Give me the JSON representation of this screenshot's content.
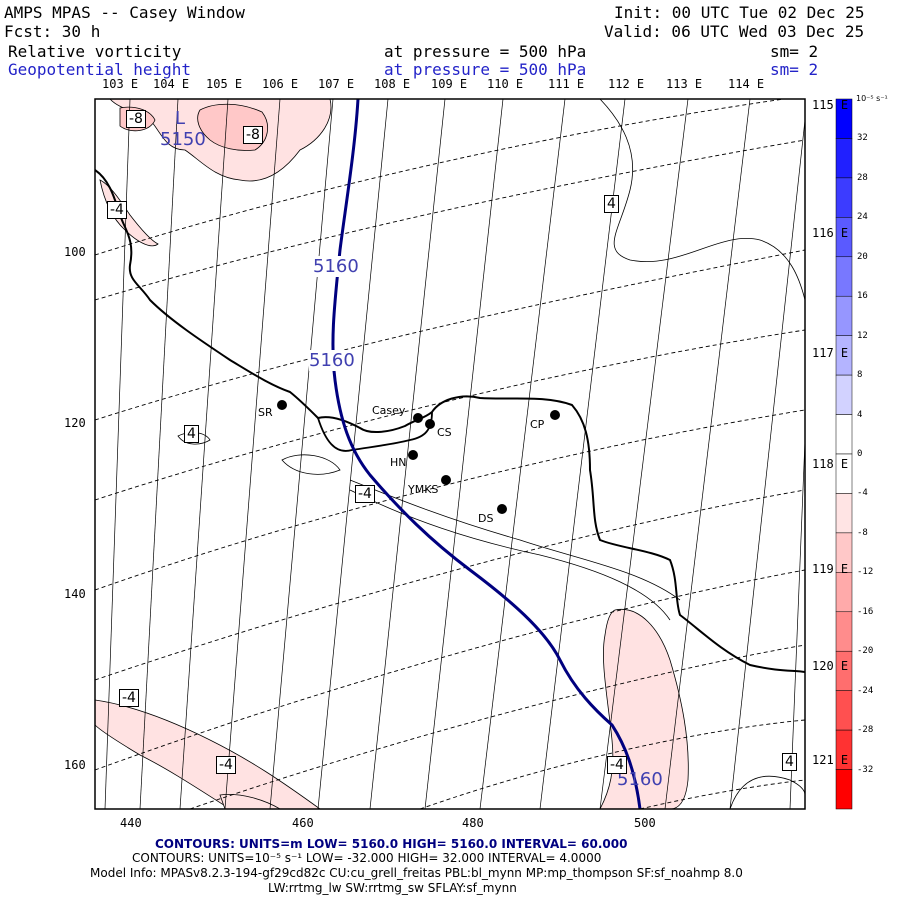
{
  "header": {
    "title": "AMPS MPAS -- Casey Window",
    "init": "Init: 00 UTC Tue 02 Dec 25",
    "fcst": "Fcst:   30 h",
    "valid": "Valid: 06 UTC Wed 03 Dec 25",
    "field1_name": "Relative vorticity",
    "field1_pressure": "at pressure =  500 hPa",
    "field1_sm": "sm= 2",
    "field2_name": "Geopotential height",
    "field2_pressure": "at pressure =  500 hPa",
    "field2_sm": "sm= 2"
  },
  "top_longitudes": [
    "103 E",
    "104 E",
    "105 E",
    "106 E",
    "107 E",
    "108 E",
    "109 E",
    "110 E",
    "111 E",
    "112 E",
    "113 E",
    "114 E"
  ],
  "right_labels": [
    "115 E",
    "116 E",
    "117 E",
    "118 E",
    "119 E",
    "120 E",
    "121 E"
  ],
  "x_axis_ticks": [
    "440",
    "460",
    "480",
    "500"
  ],
  "y_axis_ticks": [
    "100",
    "120",
    "140",
    "160"
  ],
  "colorbar": {
    "unit": "10⁻⁵ s⁻¹",
    "labels": [
      "32",
      "28",
      "24",
      "20",
      "16",
      "12",
      "8",
      "4",
      "0",
      "-4",
      "-8",
      "-12",
      "-16",
      "-20",
      "-24",
      "-28",
      "-32"
    ],
    "colors": [
      "#0000ff",
      "#2020ff",
      "#3c3cff",
      "#5a5aff",
      "#7878ff",
      "#9696ff",
      "#b4b4ff",
      "#d2d2ff",
      "#ffffff",
      "#ffffff",
      "#ffe4e4",
      "#ffc8c8",
      "#ffaaaa",
      "#ff8c8c",
      "#ff6e6e",
      "#ff5050",
      "#ff3232",
      "#ff0000"
    ]
  },
  "stations": [
    {
      "code": "Casey"
    },
    {
      "code": "CS"
    },
    {
      "code": "SR"
    },
    {
      "code": "HN"
    },
    {
      "code": "YMKS"
    },
    {
      "code": "DS"
    },
    {
      "code": "CP"
    }
  ],
  "contour_labels": {
    "low_marker": "L",
    "low_value": "5150",
    "height_labels": [
      "5160",
      "5160",
      "5160"
    ],
    "vort_labels": [
      "-8",
      "-8",
      "-4",
      "4",
      "4",
      "-4",
      "-4",
      "-4",
      "-4",
      "4"
    ]
  },
  "footer": {
    "line1": "CONTOURS:  UNITS=m  LOW=  5160.0        HIGH=  5160.0       INTERVAL=   60.000",
    "line2": "CONTOURS:  UNITS=10⁻⁵ s⁻¹  LOW= -32.000       HIGH=  32.000       INTERVAL=   4.0000",
    "line3": "Model Info: MPASv8.2.3-194-gf29cd82c CU:cu_grell_freitas PBL:bl_mynn MP:mp_thompson SF:sf_noahmp 8.0",
    "line4": "LW:rrtmg_lw SW:rrtmg_sw SFLAY:sf_mynn"
  }
}
